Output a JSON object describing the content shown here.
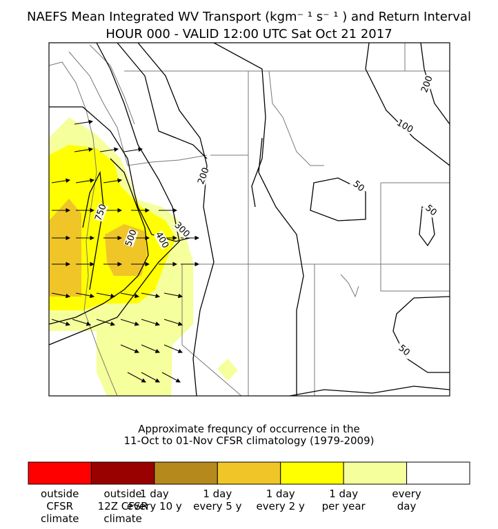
{
  "header": {
    "title": "NAEFS Mean Integrated WV Transport (kgm⁻ ¹ s⁻ ¹ ) and Return Interval",
    "subtitle": "HOUR 000 - VALID 12:00 UTC Sat Oct 21 2017"
  },
  "map": {
    "contour_labels": [
      "200",
      "100",
      "50",
      "50",
      "750",
      "500",
      "400",
      "300",
      "200",
      "50"
    ]
  },
  "caption": [
    "Approximate frequncy of occurrence in the",
    "11-Oct to 01-Nov CFSR climatology (1979-2009)"
  ],
  "legend": {
    "colors": [
      "#ff0000",
      "#990000",
      "#b5891c",
      "#f0c528",
      "#ffff00",
      "#f5ff9c",
      "#ffffff"
    ],
    "labels": [
      [
        "outside",
        "CFSR",
        "climate"
      ],
      [
        "outside",
        "12Z CFSR",
        "climate"
      ],
      [
        "1 day",
        "every 10 y"
      ],
      [
        "1 day",
        "every 5 y"
      ],
      [
        "1 day",
        "every 2 y"
      ],
      [
        "1 day",
        "per year"
      ],
      [
        "every",
        "day"
      ]
    ]
  }
}
